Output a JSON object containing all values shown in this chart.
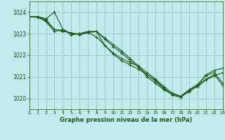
{
  "title": "Graphe pression niveau de la mer (hPa)",
  "background_color": "#c0ecee",
  "grid_color": "#99cccc",
  "line_color": "#1a5c1a",
  "xlim": [
    0,
    23
  ],
  "ylim": [
    1019.5,
    1024.5
  ],
  "yticks": [
    1020,
    1021,
    1022,
    1023,
    1024
  ],
  "xticks": [
    0,
    1,
    2,
    3,
    4,
    5,
    6,
    7,
    8,
    9,
    10,
    11,
    12,
    13,
    14,
    15,
    16,
    17,
    18,
    19,
    20,
    21,
    22,
    23
  ],
  "series": [
    [
      1023.8,
      1023.8,
      1023.7,
      1024.0,
      1023.2,
      1023.0,
      1023.0,
      1023.05,
      1022.85,
      1022.45,
      1022.05,
      1021.75,
      1021.55,
      1021.35,
      1021.1,
      1020.85,
      1020.5,
      1020.15,
      1020.05,
      1020.35,
      1020.55,
      1020.85,
      1021.05,
      1021.2
    ],
    [
      1023.8,
      1023.75,
      1023.6,
      1023.2,
      1023.1,
      1023.05,
      1022.95,
      1023.05,
      1023.1,
      1022.75,
      1022.4,
      1022.1,
      1021.75,
      1021.45,
      1021.1,
      1020.8,
      1020.45,
      1020.2,
      1020.1,
      1020.35,
      1020.6,
      1020.9,
      1021.1,
      1020.6
    ],
    [
      1023.8,
      1023.8,
      1023.65,
      1023.2,
      1023.15,
      1023.0,
      1023.0,
      1023.1,
      1023.1,
      1022.8,
      1022.5,
      1022.2,
      1021.85,
      1021.5,
      1021.2,
      1020.9,
      1020.55,
      1020.25,
      1020.1,
      1020.4,
      1020.65,
      1021.05,
      1021.2,
      1020.7
    ],
    [
      1023.8,
      1023.8,
      1023.55,
      1023.1,
      1023.2,
      1022.95,
      1023.0,
      1023.1,
      1023.1,
      1022.45,
      1022.1,
      1021.85,
      1021.65,
      1021.5,
      1021.0,
      1020.7,
      1020.4,
      1020.2,
      1020.1,
      1020.3,
      1020.6,
      1021.1,
      1021.3,
      1021.4
    ]
  ]
}
